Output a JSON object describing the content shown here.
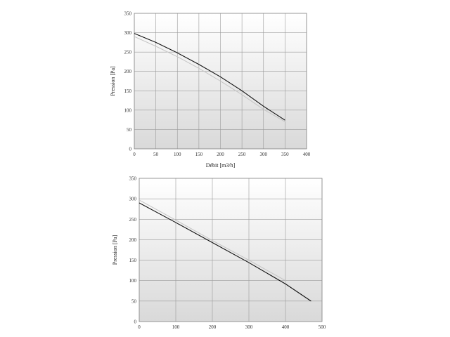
{
  "chart_data": [
    {
      "type": "line",
      "xlabel": "Débit [m3/h]",
      "ylabel": "Pression [Pa]",
      "xlim": [
        0,
        400
      ],
      "ylim": [
        0,
        350
      ],
      "x_ticks": [
        0,
        50,
        100,
        150,
        200,
        250,
        300,
        350,
        400
      ],
      "y_ticks": [
        0,
        50,
        100,
        150,
        200,
        250,
        300,
        350
      ],
      "grid": true,
      "series": [
        {
          "color": "#111111",
          "x": [
            0,
            50,
            100,
            150,
            200,
            250,
            300,
            350
          ],
          "y": [
            298,
            275,
            248,
            218,
            186,
            150,
            110,
            74
          ]
        },
        {
          "color": "#c4c4c4",
          "x": [
            0,
            50,
            100,
            150,
            200,
            250,
            300,
            350
          ],
          "y": [
            290,
            265,
            238,
            208,
            175,
            140,
            102,
            70
          ]
        }
      ]
    },
    {
      "type": "line",
      "xlabel": "",
      "ylabel": "Pression [Pa]",
      "xlim": [
        0,
        500
      ],
      "ylim": [
        0,
        350
      ],
      "x_ticks": [
        0,
        100,
        200,
        300,
        400,
        500
      ],
      "y_ticks": [
        0,
        50,
        100,
        150,
        200,
        250,
        300,
        350
      ],
      "grid": true,
      "series": [
        {
          "color": "#111111",
          "x": [
            0,
            100,
            200,
            300,
            400,
            470
          ],
          "y": [
            290,
            242,
            193,
            144,
            92,
            50
          ]
        },
        {
          "color": "#c4c4c4",
          "x": [
            0,
            100,
            200,
            300,
            400
          ],
          "y": [
            297,
            248,
            198,
            150,
            100
          ]
        }
      ]
    }
  ]
}
